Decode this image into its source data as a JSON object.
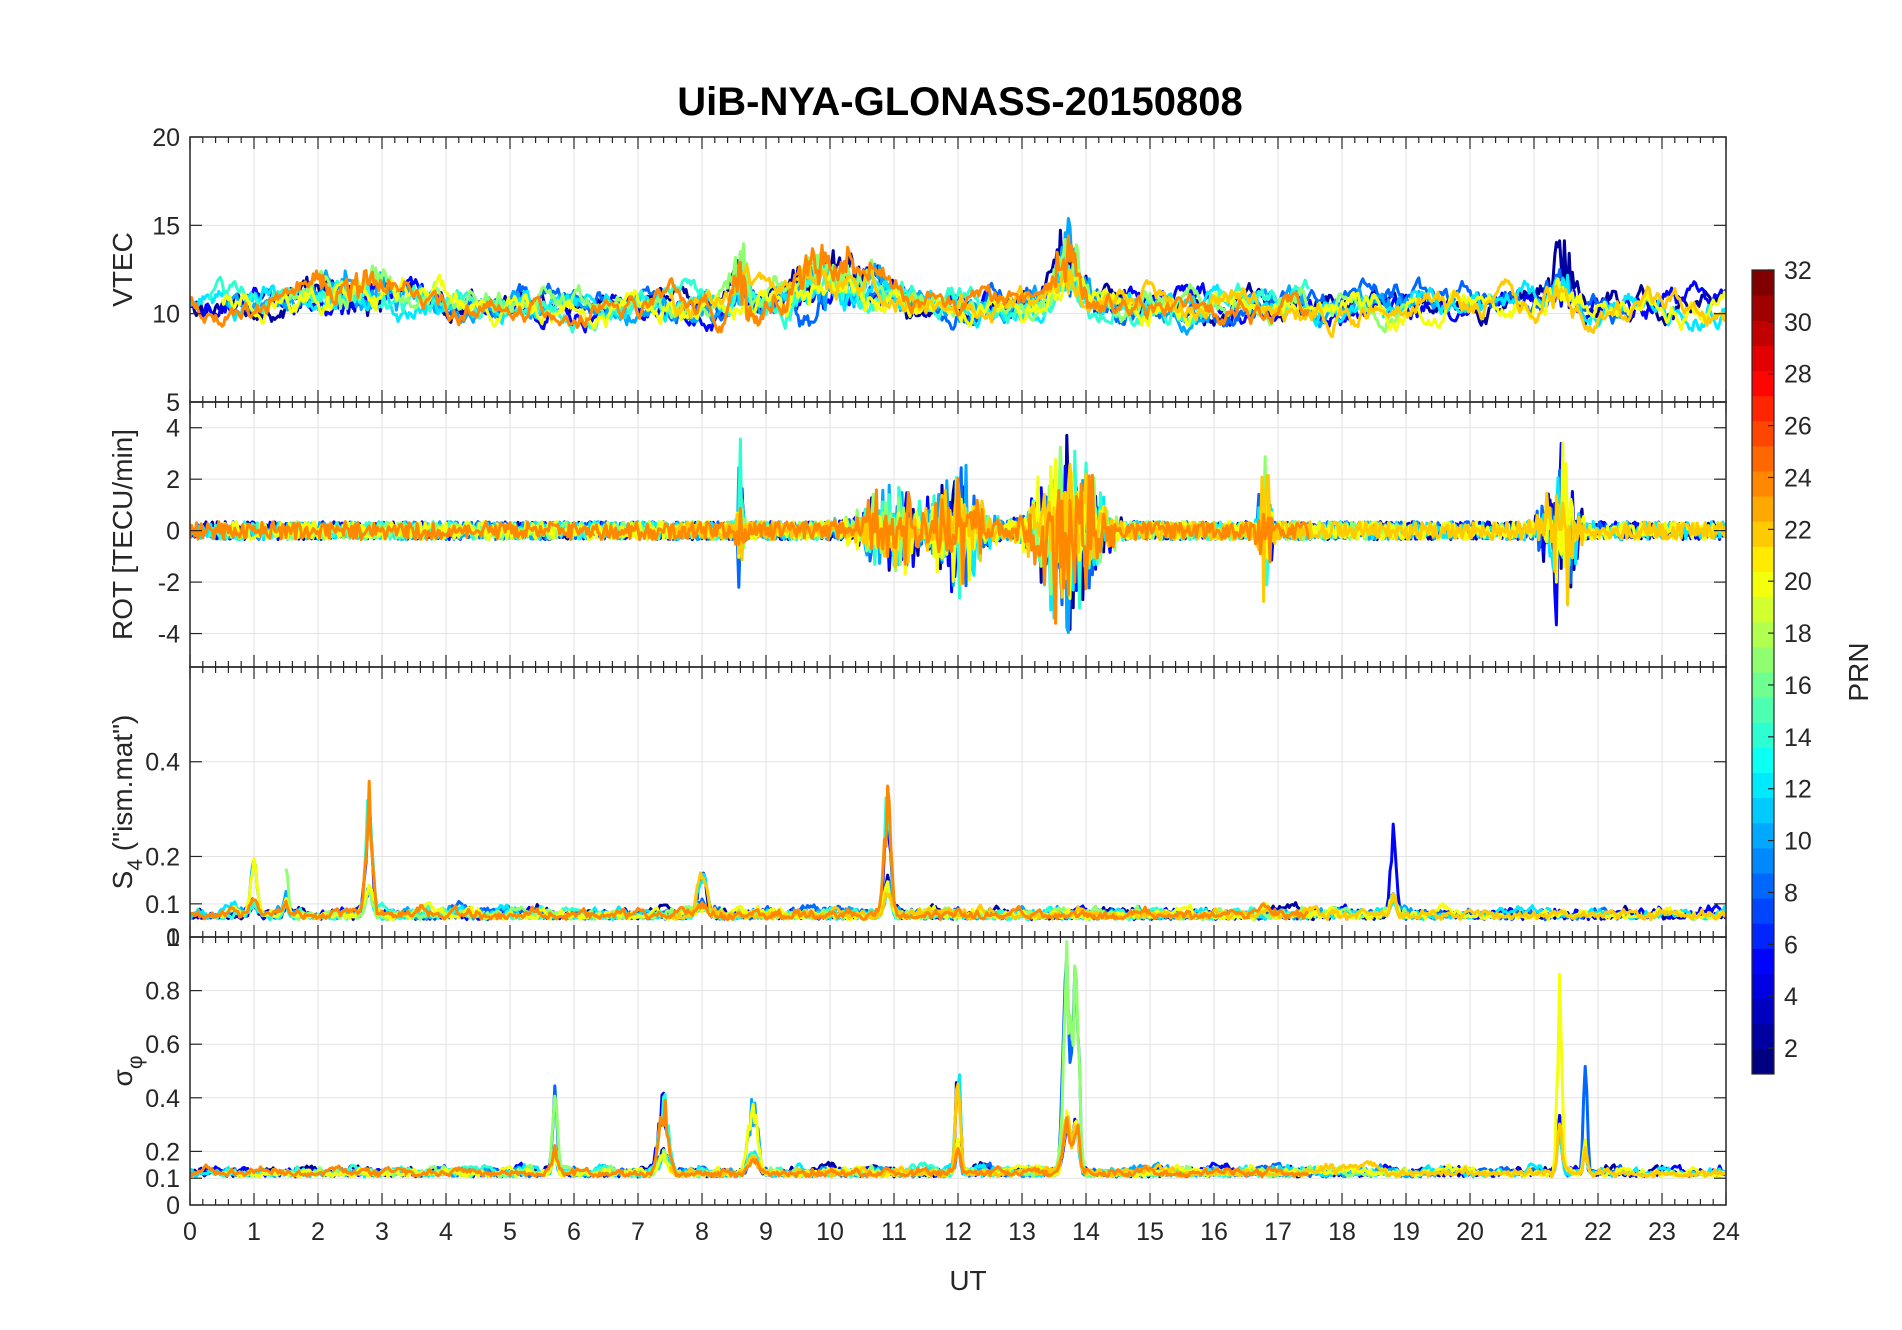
{
  "chart_data": {
    "type": "line",
    "title": "UiB-NYA-GLONASS-20150808",
    "xlabel": "UT",
    "x_ticks": [
      "0",
      "1",
      "2",
      "3",
      "4",
      "5",
      "6",
      "7",
      "8",
      "9",
      "10",
      "11",
      "12",
      "13",
      "14",
      "15",
      "16",
      "17",
      "18",
      "19",
      "20",
      "21",
      "22",
      "23",
      "24"
    ],
    "xlim": [
      0,
      24
    ],
    "grid": true,
    "panels": [
      {
        "id": "vtec",
        "ylabel": "VTEC",
        "ylim": [
          5,
          20
        ],
        "y_ticks": [
          {
            "v": 10,
            "t": "10"
          },
          {
            "v": 15,
            "t": "15"
          },
          {
            "v": 20,
            "t": "20"
          }
        ],
        "base": 10.5,
        "noise": 0.9,
        "floor": 7,
        "ceil": 18,
        "events": [
          [
            8.6,
            3.5,
            0.15
          ],
          [
            13.7,
            4.5,
            0.25
          ],
          [
            21.4,
            4.0,
            0.25
          ],
          [
            9.9,
            2.5,
            0.6
          ],
          [
            10.7,
            1.5,
            0.5
          ],
          [
            2.6,
            1.6,
            0.8
          ]
        ]
      },
      {
        "id": "rot",
        "ylabel": "ROT [TECU/min]",
        "ylim": [
          -5.3,
          5
        ],
        "y_ticks": [
          {
            "v": -4,
            "t": "-4"
          },
          {
            "v": -2,
            "t": "-2"
          },
          {
            "v": 0,
            "t": "0"
          },
          {
            "v": 2,
            "t": "2"
          },
          {
            "v": 4,
            "t": "4"
          },
          {
            "v": 5,
            "t": "5"
          }
        ],
        "base": 0,
        "noise": 0.35,
        "floor": -5.3,
        "ceil": 5,
        "events": [
          [
            13.7,
            4.0,
            0.5
          ],
          [
            21.4,
            4.0,
            0.25
          ],
          [
            12.0,
            2.5,
            0.4
          ],
          [
            16.8,
            3.0,
            0.1
          ],
          [
            8.6,
            3.5,
            0.05
          ],
          [
            11.0,
            1.8,
            0.6
          ]
        ]
      },
      {
        "id": "s4",
        "ylabel": "S",
        "ylabel_sub": "4",
        "ylabel_tail": " (\"ism.mat\")",
        "ylim": [
          0.03,
          0.6
        ],
        "y_ticks": [
          {
            "v": 0.1,
            "t": "0.1"
          },
          {
            "v": 0.2,
            "t": "0.2"
          },
          {
            "v": 0.4,
            "t": "0.4"
          }
        ],
        "base": 0.07,
        "noise": 0.02,
        "floor": 0.04,
        "ceil": 0.6,
        "events": [
          [
            2.8,
            0.28,
            0.07
          ],
          [
            10.9,
            0.28,
            0.07
          ],
          [
            18.8,
            0.2,
            0.06
          ],
          [
            1.5,
            0.12,
            0.05
          ],
          [
            1.0,
            0.13,
            0.08
          ],
          [
            8.0,
            0.1,
            0.1
          ]
        ]
      },
      {
        "id": "sigma",
        "ylabel": "σ",
        "ylabel_sub": "φ",
        "ylim": [
          0,
          1
        ],
        "y_ticks": [
          {
            "v": 0,
            "t": "0"
          },
          {
            "v": 0.1,
            "t": "0.1"
          },
          {
            "v": 0.2,
            "t": "0.2"
          },
          {
            "v": 0.4,
            "t": "0.4"
          },
          {
            "v": 0.6,
            "t": "0.6"
          },
          {
            "v": 0.8,
            "t": "0.8"
          },
          {
            "v": 1,
            "t": "1"
          }
        ],
        "top_label": "0",
        "base": 0.11,
        "noise": 0.03,
        "floor": 0.05,
        "ceil": 1,
        "events": [
          [
            13.7,
            0.9,
            0.08
          ],
          [
            13.85,
            0.9,
            0.06
          ],
          [
            21.4,
            0.85,
            0.05
          ],
          [
            21.8,
            0.5,
            0.04
          ],
          [
            12.0,
            0.5,
            0.05
          ],
          [
            5.7,
            0.38,
            0.05
          ],
          [
            7.4,
            0.3,
            0.1
          ],
          [
            8.8,
            0.3,
            0.1
          ]
        ]
      }
    ],
    "colorbar": {
      "label": "PRN",
      "range": [
        1,
        32
      ],
      "ticks": [
        "2",
        "4",
        "6",
        "8",
        "10",
        "12",
        "14",
        "16",
        "18",
        "20",
        "22",
        "24",
        "26",
        "28",
        "30",
        "32"
      ],
      "colormap": "jet"
    },
    "series": [
      {
        "prn": 2,
        "start": 0,
        "end": 24
      },
      {
        "prn": 5,
        "start": 0,
        "end": 24
      },
      {
        "prn": 8,
        "start": 3.8,
        "end": 22.5
      },
      {
        "prn": 10,
        "start": 0.5,
        "end": 19.5
      },
      {
        "prn": 12,
        "start": 0,
        "end": 24
      },
      {
        "prn": 14,
        "start": 0.3,
        "end": 17.5
      },
      {
        "prn": 17,
        "start": 1.5,
        "end": 19
      },
      {
        "prn": 20,
        "start": 0.5,
        "end": 24
      },
      {
        "prn": 22,
        "start": 7.5,
        "end": 24
      },
      {
        "prn": 24,
        "start": 0,
        "end": 17.5
      }
    ]
  }
}
